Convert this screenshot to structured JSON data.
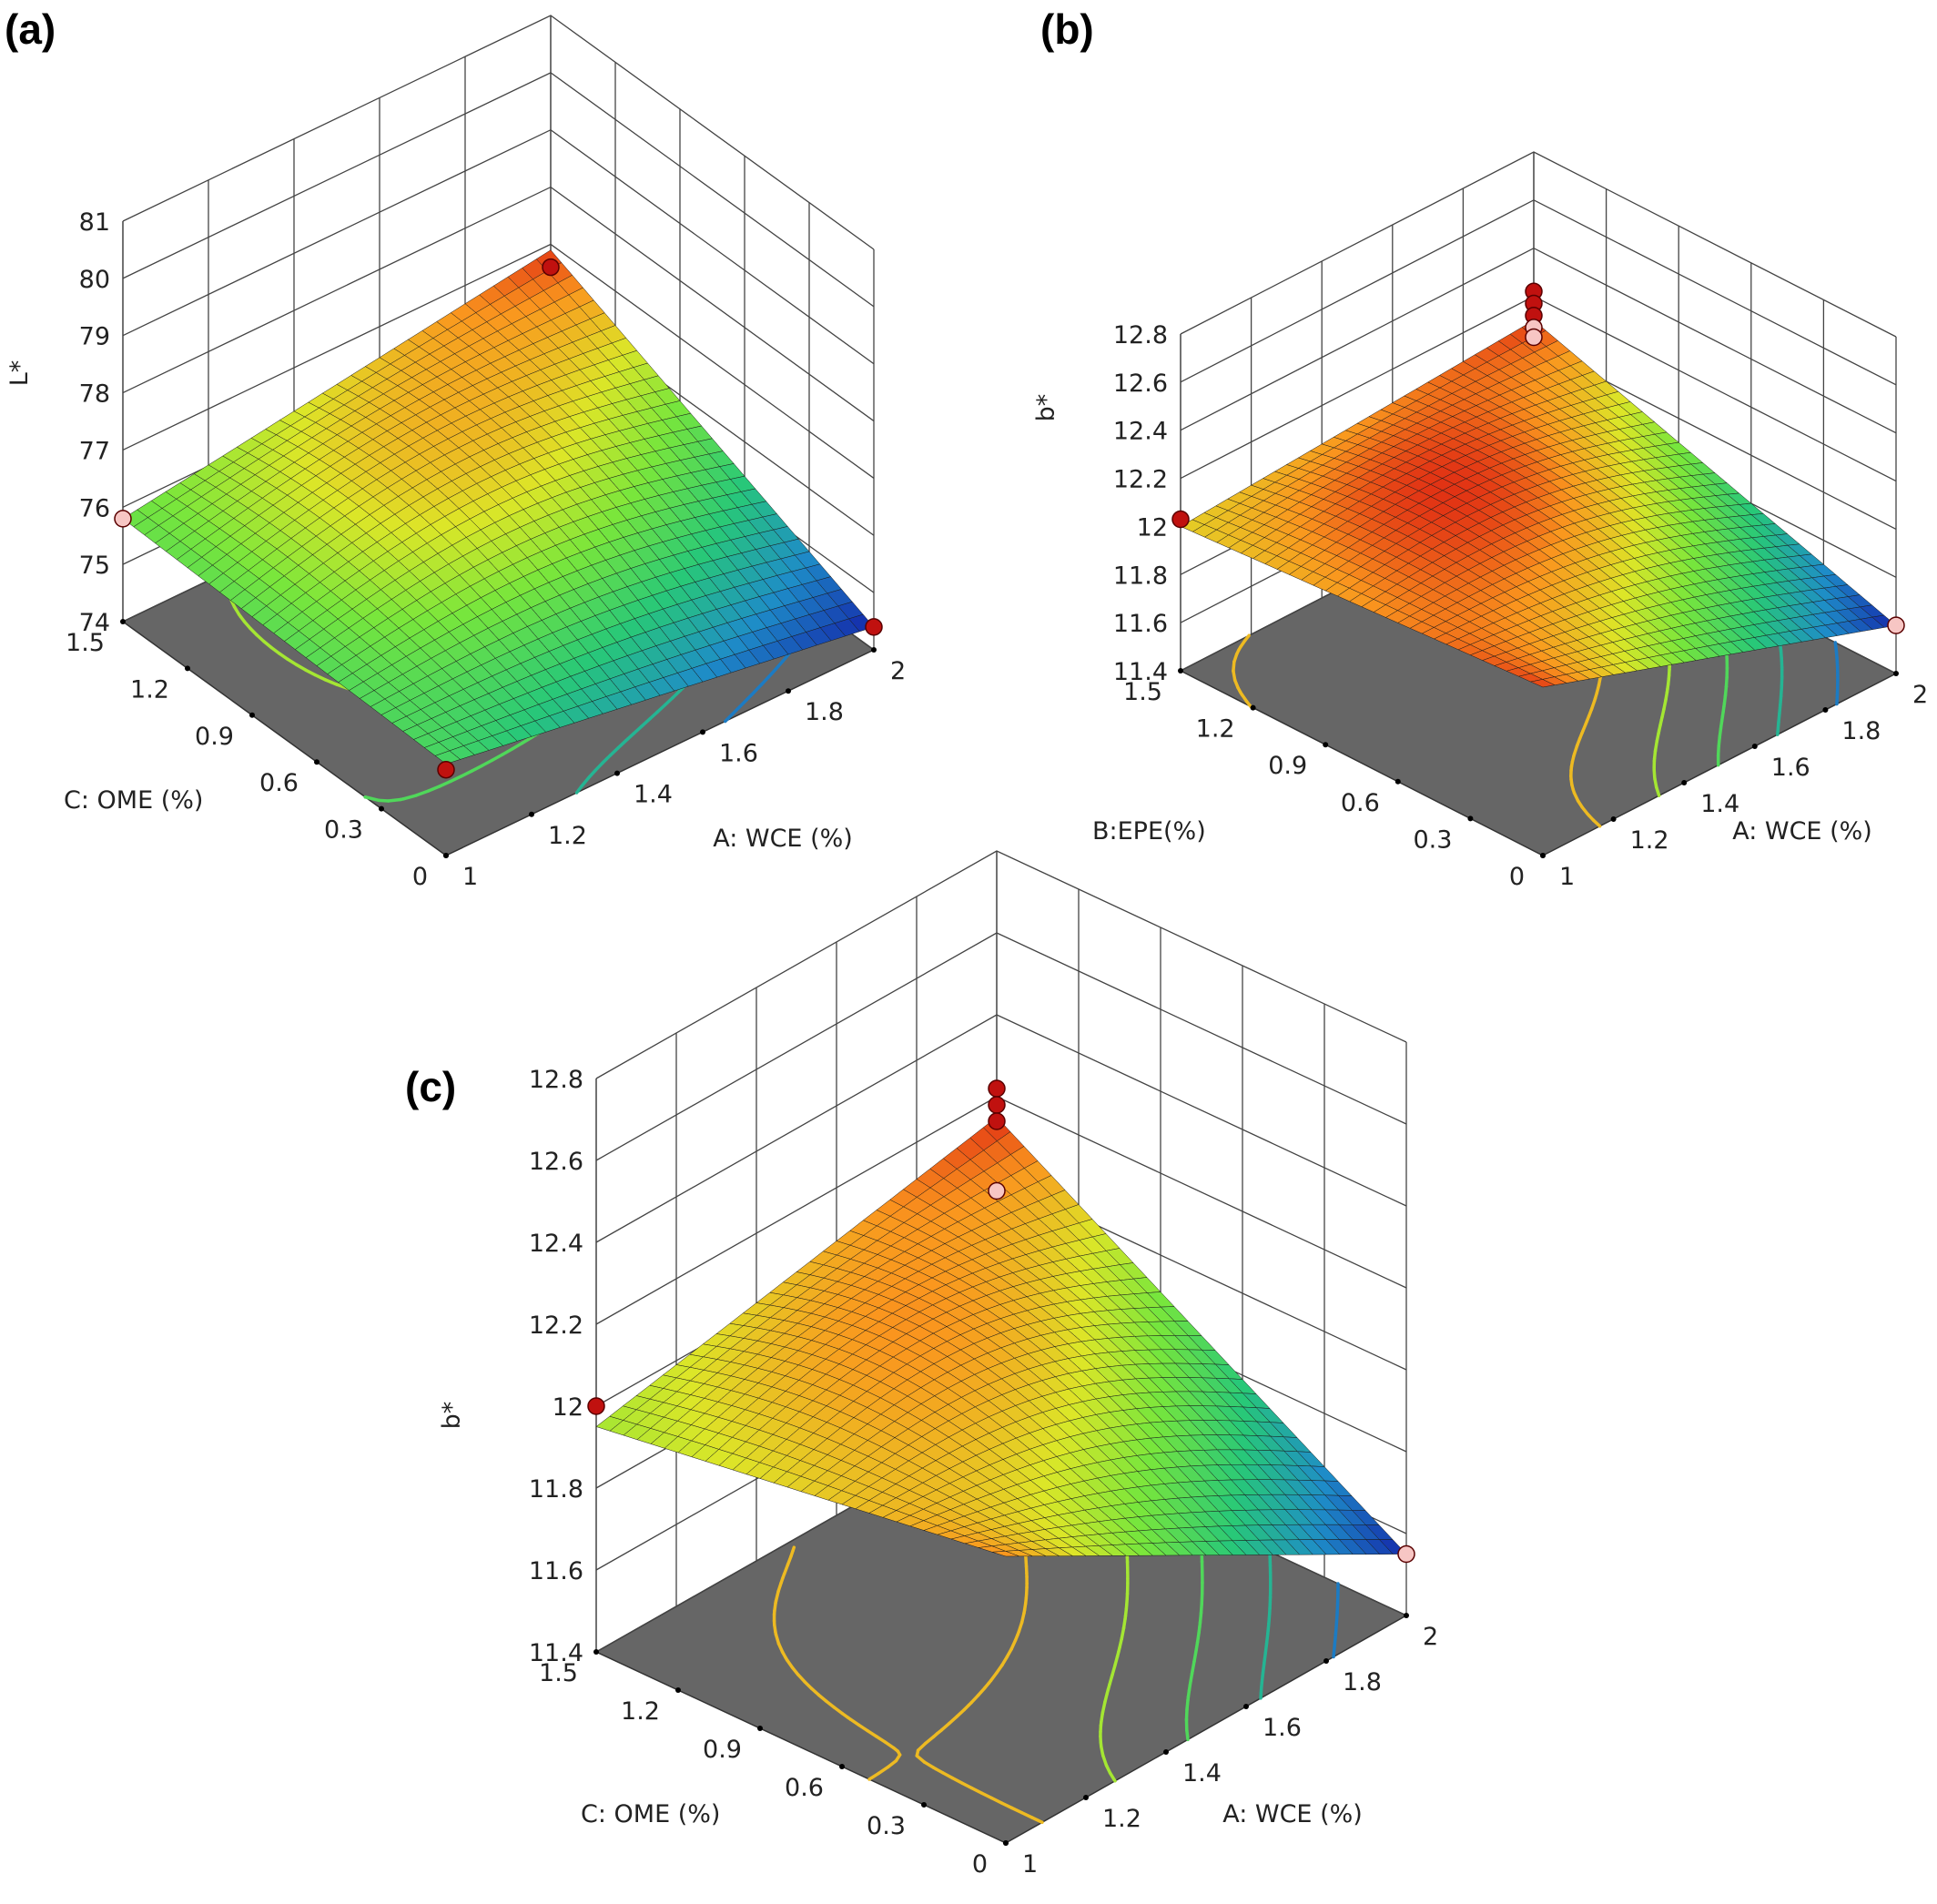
{
  "chart_data": [
    {
      "type": "surface",
      "panel_label": "(a)",
      "zlabel": "L*",
      "zlim": [
        74,
        81
      ],
      "zticks": [
        "74",
        "75",
        "76",
        "77",
        "78",
        "79",
        "80",
        "81"
      ],
      "xlabel": "A: WCE (%)",
      "xlim": [
        1,
        2
      ],
      "xticks": [
        "1",
        "1.2",
        "1.4",
        "1.6",
        "1.8",
        "2"
      ],
      "ylabel": "C: OME (%)",
      "ylim": [
        0,
        1.5
      ],
      "yticks": [
        "0",
        "0.3",
        "0.6",
        "0.9",
        "1.2",
        "1.5"
      ],
      "grid": true,
      "surface_corners": {
        "x1_y0": 75.6,
        "x1_y1.5": 75.8,
        "x2_y0": 74.4,
        "x2_y1.5": 76.9
      },
      "points": [
        {
          "x": 1,
          "y": 1.5,
          "z": 75.8,
          "kind": "below-surface"
        },
        {
          "x": 1,
          "y": 0,
          "z": 75.5,
          "kind": "above-surface"
        },
        {
          "x": 2,
          "y": 1.5,
          "z": 76.6,
          "kind": "above-surface"
        },
        {
          "x": 2,
          "y": 0,
          "z": 74.4,
          "kind": "above-surface"
        }
      ]
    },
    {
      "type": "surface",
      "panel_label": "(b)",
      "zlabel": "b*",
      "zlim": [
        11.4,
        12.8
      ],
      "zticks": [
        "11.4",
        "11.6",
        "11.8",
        "12",
        "12.2",
        "12.4",
        "12.6",
        "12.8"
      ],
      "xlabel": "A: WCE (%)",
      "xlim": [
        1,
        2
      ],
      "xticks": [
        "1",
        "1.2",
        "1.4",
        "1.6",
        "1.8",
        "2"
      ],
      "ylabel": "B:EPE(%)",
      "ylim": [
        0,
        1.5
      ],
      "yticks": [
        "0",
        "0.3",
        "0.6",
        "0.9",
        "1.2",
        "1.5"
      ],
      "grid": true,
      "surface_corners": {
        "x1_y0": 12.1,
        "x1_y1.5": 12.0,
        "x2_y0": 11.6,
        "x2_y1.5": 12.1
      },
      "points": [
        {
          "x": 1,
          "y": 1.5,
          "z": 12.03,
          "kind": "above-surface"
        },
        {
          "x": 2,
          "y": 1.5,
          "z": 12.22,
          "kind": "above-surface"
        },
        {
          "x": 2,
          "y": 1.5,
          "z": 12.17,
          "kind": "above-surface"
        },
        {
          "x": 2,
          "y": 1.5,
          "z": 12.12,
          "kind": "above-surface"
        },
        {
          "x": 2,
          "y": 1.5,
          "z": 12.07,
          "kind": "below-surface"
        },
        {
          "x": 2,
          "y": 1.5,
          "z": 12.03,
          "kind": "below-surface"
        },
        {
          "x": 2,
          "y": 0,
          "z": 11.6,
          "kind": "below-surface"
        }
      ]
    },
    {
      "type": "surface",
      "panel_label": "(c)",
      "zlabel": "b*",
      "zlim": [
        11.4,
        12.8
      ],
      "zticks": [
        "11.4",
        "11.6",
        "11.8",
        "12",
        "12.2",
        "12.4",
        "12.6",
        "12.8"
      ],
      "xlabel": "A: WCE (%)",
      "xlim": [
        1,
        2
      ],
      "xticks": [
        "1",
        "1.2",
        "1.4",
        "1.6",
        "1.8",
        "2"
      ],
      "ylabel": "C: OME (%)",
      "ylim": [
        0,
        1.5
      ],
      "yticks": [
        "0",
        "0.3",
        "0.6",
        "0.9",
        "1.2",
        "1.5"
      ],
      "grid": true,
      "surface_corners": {
        "x1_y0": 12.1,
        "x1_y1.5": 11.95,
        "x2_y0": 11.55,
        "x2_y1.5": 12.15
      },
      "points": [
        {
          "x": 1,
          "y": 1.5,
          "z": 12.0,
          "kind": "above-surface"
        },
        {
          "x": 2,
          "y": 1.5,
          "z": 12.22,
          "kind": "above-surface"
        },
        {
          "x": 2,
          "y": 1.5,
          "z": 12.18,
          "kind": "above-surface"
        },
        {
          "x": 2,
          "y": 1.5,
          "z": 12.14,
          "kind": "above-surface"
        },
        {
          "x": 2,
          "y": 1.5,
          "z": 11.97,
          "kind": "below-surface"
        },
        {
          "x": 2,
          "y": 0,
          "z": 11.55,
          "kind": "below-surface"
        }
      ]
    }
  ]
}
